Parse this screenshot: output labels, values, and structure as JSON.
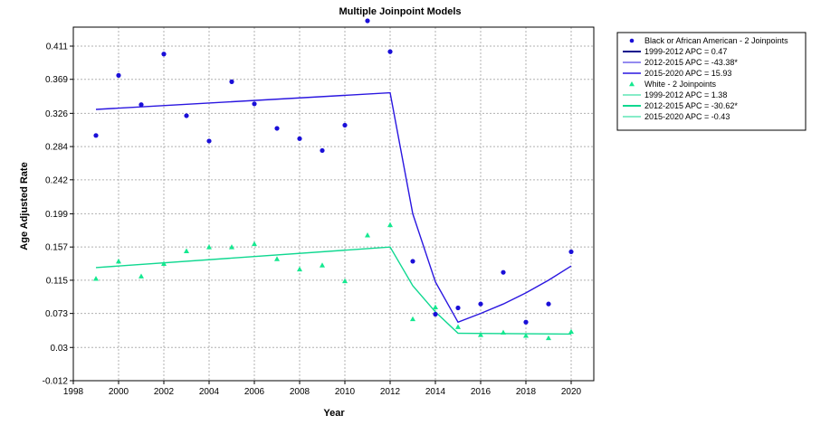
{
  "chart_data": {
    "type": "line",
    "title": "Multiple Joinpoint Models",
    "xlabel": "Year",
    "ylabel": "Age Adjusted Rate",
    "xlim": [
      1998,
      2021
    ],
    "ylim": [
      -0.012,
      0.435
    ],
    "x_ticks": [
      1998,
      2000,
      2002,
      2004,
      2006,
      2008,
      2010,
      2012,
      2014,
      2016,
      2018,
      2020
    ],
    "x_tick_labels": [
      "1998",
      "2000",
      "2002",
      "2004",
      "2006",
      "2008",
      "2010",
      "2012",
      "2014",
      "2016",
      "2018",
      "2020"
    ],
    "y_ticks": [
      -0.012,
      0.03,
      0.073,
      0.115,
      0.157,
      0.199,
      0.242,
      0.284,
      0.326,
      0.369,
      0.411
    ],
    "y_tick_labels": [
      "-0.012",
      "0.03",
      "0.073",
      "0.115",
      "0.157",
      "0.199",
      "0.242",
      "0.284",
      "0.326",
      "0.369",
      "0.411"
    ],
    "grid": true,
    "legend_position": "right",
    "legend": [
      {
        "label": "Black or African American - 2 Joinpoints",
        "marker": "circle",
        "color": "#1a0fd8"
      },
      {
        "label": "1999-2012 APC =   0.47",
        "marker": "line",
        "color": "#0a0a8c",
        "width": 2
      },
      {
        "label": "2012-2015 APC =  -43.38*",
        "marker": "line",
        "color": "#2a16e0",
        "width": 1
      },
      {
        "label": "2015-2020 APC =   15.93",
        "marker": "line",
        "color": "#2a16e0",
        "width": 1.5
      },
      {
        "label": "White - 2 Joinpoints",
        "marker": "triangle",
        "color": "#15e890"
      },
      {
        "label": "1999-2012 APC =    1.38",
        "marker": "line",
        "color": "#0fd890",
        "width": 1
      },
      {
        "label": "2012-2015 APC =  -30.62*",
        "marker": "line",
        "color": "#0fd890",
        "width": 2
      },
      {
        "label": "2015-2020 APC =   -0.43",
        "marker": "line",
        "color": "#0fd890",
        "width": 1
      }
    ],
    "series": [
      {
        "name": "Black or African American - 2 Joinpoints",
        "kind": "observed",
        "marker": "circle",
        "color": "#1a0fd8",
        "x": [
          1999,
          2000,
          2001,
          2002,
          2003,
          2004,
          2005,
          2006,
          2007,
          2008,
          2009,
          2010,
          2011,
          2012,
          2013,
          2014,
          2015,
          2016,
          2017,
          2018,
          2019,
          2020
        ],
        "values": [
          0.298,
          0.374,
          0.337,
          0.401,
          0.323,
          0.291,
          0.366,
          0.338,
          0.307,
          0.294,
          0.279,
          0.311,
          0.443,
          0.404,
          0.139,
          0.072,
          0.08,
          0.085,
          0.125,
          0.062,
          0.085,
          0.151
        ]
      },
      {
        "name": "Black or African American - 2 Joinpoints",
        "kind": "fitted",
        "color": "#2a16e0",
        "x": [
          1999,
          2012,
          2013,
          2014,
          2015,
          2016,
          2017,
          2018,
          2019,
          2020
        ],
        "values": [
          0.331,
          0.352,
          0.199,
          0.113,
          0.062,
          0.073,
          0.085,
          0.099,
          0.115,
          0.133
        ]
      },
      {
        "name": "White - 2 Joinpoints",
        "kind": "observed",
        "marker": "triangle",
        "color": "#15e890",
        "x": [
          1999,
          2000,
          2001,
          2002,
          2003,
          2004,
          2005,
          2006,
          2007,
          2008,
          2009,
          2010,
          2011,
          2012,
          2013,
          2014,
          2015,
          2016,
          2017,
          2018,
          2019,
          2020
        ],
        "values": [
          0.117,
          0.139,
          0.12,
          0.136,
          0.152,
          0.157,
          0.157,
          0.161,
          0.142,
          0.129,
          0.134,
          0.114,
          0.172,
          0.185,
          0.066,
          0.081,
          0.056,
          0.046,
          0.049,
          0.045,
          0.042,
          0.05
        ]
      },
      {
        "name": "White - 2 Joinpoints",
        "kind": "fitted",
        "color": "#0fd890",
        "x": [
          1999,
          2012,
          2013,
          2014,
          2015,
          2020
        ],
        "values": [
          0.131,
          0.157,
          0.108,
          0.075,
          0.048,
          0.047
        ]
      }
    ]
  }
}
